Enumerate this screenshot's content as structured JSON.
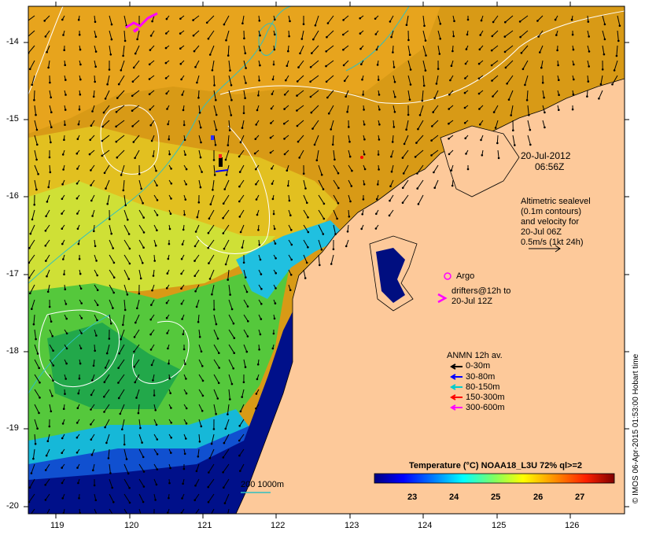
{
  "map": {
    "date": "20-Jul-2012",
    "time": "06:56Z",
    "altimetry_note": [
      "Altimetric sealevel",
      "(0.1m contours)",
      "and velocity for",
      "20-Jul 06Z",
      "0.5m/s (1kt 24h)"
    ],
    "argo_label": "Argo",
    "drifter_label": [
      "drifters@12h to",
      "20-Jul 12Z"
    ],
    "anmn_title": "ANMN 12h av.",
    "anmn_legend": [
      {
        "label": "0-30m",
        "color": "#000000"
      },
      {
        "label": "30-80m",
        "color": "#0000ff"
      },
      {
        "label": "80-150m",
        "color": "#00cccc"
      },
      {
        "label": "150-300m",
        "color": "#ff0000"
      },
      {
        "label": "300-600m",
        "color": "#ff00ff"
      }
    ],
    "isobath_label": "200  1000m",
    "colorbar_title": "Temperature (°C) NOAA18_L3U 72% ql>=2",
    "colorbar_ticks": [
      "23",
      "24",
      "25",
      "26",
      "27"
    ],
    "colorbar_colors": [
      "#000080",
      "#0000ff",
      "#0080ff",
      "#00ffff",
      "#80ff80",
      "#ffff00",
      "#ff8000",
      "#ff0000",
      "#800000"
    ],
    "credit": "© IMOS 06-Apr-2015 01:53:00 Hobart time",
    "x_ticks": [
      "119",
      "120",
      "121",
      "122",
      "123",
      "124",
      "125",
      "126"
    ],
    "y_ticks": [
      "-14",
      "-15",
      "-16",
      "-17",
      "-18",
      "-19",
      "-20"
    ],
    "colors": {
      "land": "#fdc99a",
      "argo": "#ff00ff",
      "drifter": "#ff00ff"
    }
  }
}
